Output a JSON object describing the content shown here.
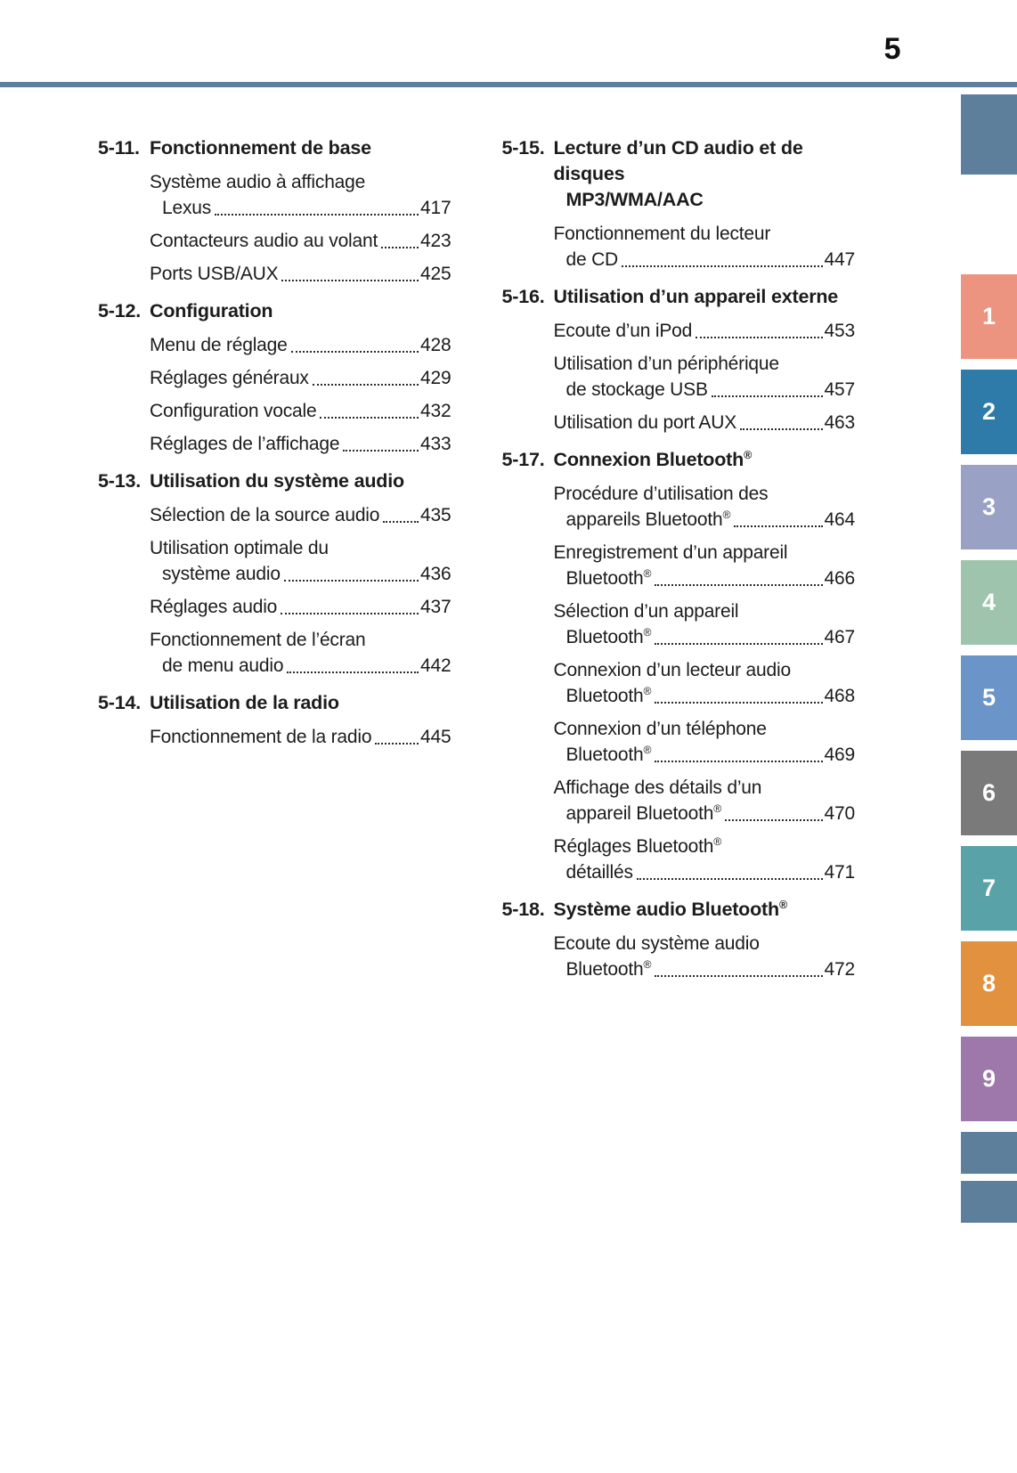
{
  "page": {
    "number": "5"
  },
  "colors": {
    "rule": "#5d7f9c",
    "text": "#1c1c1c"
  },
  "toc": {
    "left": [
      {
        "num": "5-11.",
        "title": "Fonctionnement de base",
        "entries": [
          {
            "pre": "Système audio à affichage",
            "text": "Lexus",
            "page": "417"
          },
          {
            "text": "Contacteurs audio au volant",
            "page": "423"
          },
          {
            "text": "Ports USB/AUX",
            "page": "425"
          }
        ]
      },
      {
        "num": "5-12.",
        "title": "Configuration",
        "entries": [
          {
            "text": "Menu de réglage",
            "page": "428"
          },
          {
            "text": "Réglages généraux",
            "page": "429"
          },
          {
            "text": "Configuration vocale",
            "page": "432"
          },
          {
            "text": "Réglages de l’affichage",
            "page": "433"
          }
        ]
      },
      {
        "num": "5-13.",
        "title": "Utilisation du système audio",
        "entries": [
          {
            "text": "Sélection de la source audio",
            "page": "435"
          },
          {
            "pre": "Utilisation optimale du",
            "text": "système audio",
            "page": "436"
          },
          {
            "text": "Réglages audio",
            "page": "437"
          },
          {
            "pre": "Fonctionnement de l’écran",
            "text": "de menu audio",
            "page": "442"
          }
        ]
      },
      {
        "num": "5-14.",
        "title": "Utilisation de la radio",
        "entries": [
          {
            "text": "Fonctionnement de la radio",
            "page": "445"
          }
        ]
      }
    ],
    "right": [
      {
        "num": "5-15.",
        "title": "Lecture d’un CD audio et de disques",
        "title2": "MP3/WMA/AAC",
        "entries": [
          {
            "pre": "Fonctionnement du lecteur",
            "text": "de CD",
            "page": "447"
          }
        ]
      },
      {
        "num": "5-16.",
        "title": "Utilisation d’un appareil externe",
        "entries": [
          {
            "text": "Ecoute d’un iPod",
            "page": "453"
          },
          {
            "pre": "Utilisation d’un périphérique",
            "text": "de stockage USB",
            "page": "457"
          },
          {
            "text": "Utilisation du port AUX",
            "page": "463"
          }
        ]
      },
      {
        "num": "5-17.",
        "title": "Connexion Bluetooth®",
        "entries": [
          {
            "pre": "Procédure d’utilisation des",
            "text": "appareils Bluetooth®",
            "page": "464"
          },
          {
            "pre": "Enregistrement d’un appareil",
            "text": "Bluetooth®",
            "page": "466"
          },
          {
            "pre": "Sélection d’un appareil",
            "text": "Bluetooth®",
            "page": "467"
          },
          {
            "pre": "Connexion d’un lecteur audio",
            "text": "Bluetooth®",
            "page": "468"
          },
          {
            "pre": "Connexion d’un téléphone",
            "text": "Bluetooth®",
            "page": "469"
          },
          {
            "pre": "Affichage des détails d’un",
            "text": "appareil Bluetooth®",
            "page": "470"
          },
          {
            "pre": "Réglages Bluetooth®",
            "text": "détaillés",
            "page": "471"
          }
        ]
      },
      {
        "num": "5-18.",
        "title": "Système audio Bluetooth®",
        "entries": [
          {
            "pre": "Ecoute du système audio",
            "text": "Bluetooth®",
            "page": "472"
          }
        ]
      }
    ]
  },
  "sidebar": {
    "tabs": [
      {
        "label": "",
        "color": "#5d7f9c"
      },
      {
        "label": "1",
        "color": "#ec947f"
      },
      {
        "label": "2",
        "color": "#2e7aa9"
      },
      {
        "label": "3",
        "color": "#99a1c4"
      },
      {
        "label": "4",
        "color": "#9ec4ad"
      },
      {
        "label": "5",
        "color": "#6b94c8"
      },
      {
        "label": "6",
        "color": "#7b7a7a"
      },
      {
        "label": "7",
        "color": "#58a2a8"
      },
      {
        "label": "8",
        "color": "#e2913f"
      },
      {
        "label": "9",
        "color": "#9e78aa"
      },
      {
        "label": "",
        "color": "#5d7f9c"
      },
      {
        "label": "",
        "color": "#5d7f9c"
      }
    ]
  }
}
